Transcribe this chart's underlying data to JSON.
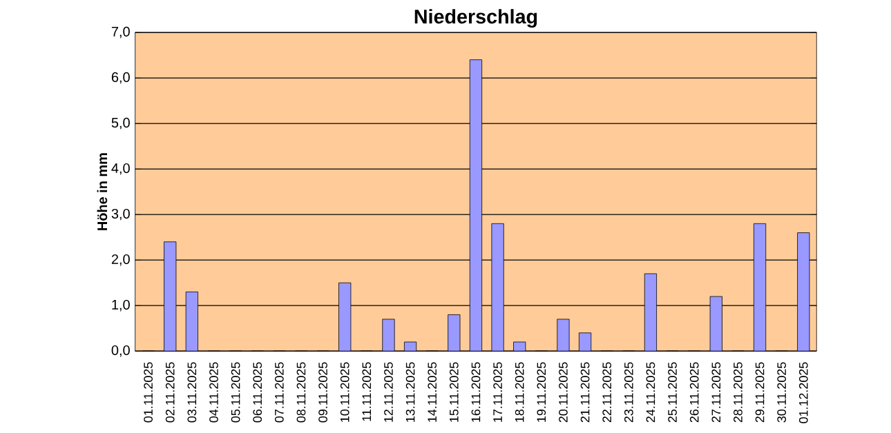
{
  "chart_data": {
    "type": "bar",
    "title": "Niederschlag",
    "ylabel": "Höhe in mm",
    "categories": [
      "01.11.2025",
      "02.11.2025",
      "03.11.2025",
      "04.11.2025",
      "05.11.2025",
      "06.11.2025",
      "07.11.2025",
      "08.11.2025",
      "09.11.2025",
      "10.11.2025",
      "11.11.2025",
      "12.11.2025",
      "13.11.2025",
      "14.11.2025",
      "15.11.2025",
      "16.11.2025",
      "17.11.2025",
      "18.11.2025",
      "19.11.2025",
      "20.11.2025",
      "21.11.2025",
      "22.11.2025",
      "23.11.2025",
      "24.11.2025",
      "25.11.2025",
      "26.11.2025",
      "27.11.2025",
      "28.11.2025",
      "29.11.2025",
      "30.11.2025",
      "01.12.2025"
    ],
    "values": [
      0,
      2.4,
      1.3,
      0,
      0,
      0,
      0,
      0,
      0,
      1.5,
      0,
      0.7,
      0.2,
      0,
      0.8,
      6.4,
      2.8,
      0.2,
      0,
      0.7,
      0.4,
      0,
      0,
      1.7,
      0,
      0,
      1.2,
      0,
      2.8,
      0,
      2.6
    ],
    "color": "#9999ff",
    "ylim": [
      0,
      7
    ],
    "yticks": [
      {
        "value": 0,
        "label": "0,0"
      },
      {
        "value": 1,
        "label": "1,0"
      },
      {
        "value": 2,
        "label": "2,0"
      },
      {
        "value": 3,
        "label": "3,0"
      },
      {
        "value": 4,
        "label": "4,0"
      },
      {
        "value": 5,
        "label": "5,0"
      },
      {
        "value": 6,
        "label": "6,0"
      },
      {
        "value": 7,
        "label": "7,0"
      }
    ],
    "grid": "y"
  }
}
